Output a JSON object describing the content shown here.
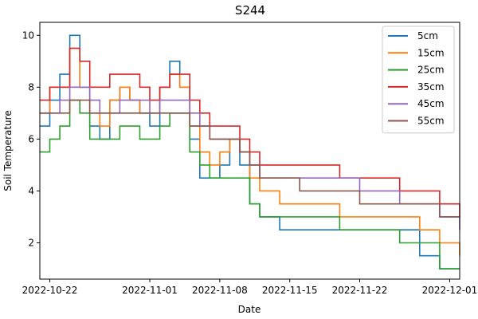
{
  "chart_data": {
    "type": "line",
    "title": "S244",
    "xlabel": "Date",
    "ylabel": "Soil Temperature",
    "x_ticks": [
      "2022-10-22",
      "2022-11-01",
      "2022-11-08",
      "2022-11-15",
      "2022-11-22",
      "2022-12-01"
    ],
    "y_ticks": [
      "2",
      "4",
      "6",
      "8",
      "10"
    ],
    "xlim": [
      "2022-10-21",
      "2022-12-02"
    ],
    "ylim": [
      0.6,
      10.5
    ],
    "grid": false,
    "legend_position": "top-right",
    "series": [
      {
        "name": "5cm",
        "color": "#1f77b4",
        "x": [
          "2022-10-21",
          "2022-10-22",
          "2022-10-23",
          "2022-10-24",
          "2022-10-25",
          "2022-10-26",
          "2022-10-27",
          "2022-10-28",
          "2022-10-29",
          "2022-10-30",
          "2022-10-31",
          "2022-11-01",
          "2022-11-02",
          "2022-11-03",
          "2022-11-04",
          "2022-11-05",
          "2022-11-06",
          "2022-11-07",
          "2022-11-08",
          "2022-11-09",
          "2022-11-10",
          "2022-11-11",
          "2022-11-12",
          "2022-11-14",
          "2022-11-16",
          "2022-11-20",
          "2022-11-22",
          "2022-11-26",
          "2022-11-28",
          "2022-11-30",
          "2022-12-02"
        ],
        "y": [
          6.5,
          7.5,
          8.5,
          10,
          8,
          6.5,
          6,
          7.5,
          8,
          7.5,
          7,
          6.5,
          8,
          9,
          8,
          6,
          4.5,
          4.5,
          5,
          6,
          5,
          3.5,
          3,
          2.5,
          2.5,
          2.5,
          2.5,
          2.5,
          1.5,
          1,
          1
        ]
      },
      {
        "name": "15cm",
        "color": "#ff7f0e",
        "x": [
          "2022-10-21",
          "2022-10-22",
          "2022-10-23",
          "2022-10-24",
          "2022-10-25",
          "2022-10-26",
          "2022-10-27",
          "2022-10-28",
          "2022-10-29",
          "2022-10-30",
          "2022-10-31",
          "2022-11-01",
          "2022-11-02",
          "2022-11-03",
          "2022-11-04",
          "2022-11-05",
          "2022-11-06",
          "2022-11-07",
          "2022-11-08",
          "2022-11-09",
          "2022-11-10",
          "2022-11-11",
          "2022-11-12",
          "2022-11-14",
          "2022-11-16",
          "2022-11-20",
          "2022-11-22",
          "2022-11-26",
          "2022-11-28",
          "2022-11-30",
          "2022-12-02"
        ],
        "y": [
          7,
          8,
          8,
          9.5,
          8,
          7,
          6.5,
          7.5,
          8,
          7.5,
          7,
          7,
          8,
          8.5,
          8,
          6.5,
          5.5,
          5,
          5.5,
          6,
          5.5,
          4.5,
          4,
          3.5,
          3.5,
          3,
          3,
          3,
          2.5,
          2,
          1.5
        ]
      },
      {
        "name": "25cm",
        "color": "#2ca02c",
        "x": [
          "2022-10-21",
          "2022-10-22",
          "2022-10-23",
          "2022-10-24",
          "2022-10-25",
          "2022-10-26",
          "2022-10-27",
          "2022-10-28",
          "2022-10-29",
          "2022-10-30",
          "2022-10-31",
          "2022-11-01",
          "2022-11-02",
          "2022-11-03",
          "2022-11-04",
          "2022-11-05",
          "2022-11-06",
          "2022-11-07",
          "2022-11-08",
          "2022-11-09",
          "2022-11-10",
          "2022-11-11",
          "2022-11-12",
          "2022-11-14",
          "2022-11-16",
          "2022-11-20",
          "2022-11-22",
          "2022-11-26",
          "2022-11-28",
          "2022-11-30",
          "2022-12-02"
        ],
        "y": [
          5.5,
          6,
          6.5,
          7.5,
          7,
          6,
          6,
          6,
          6.5,
          6.5,
          6,
          6,
          6.5,
          7,
          7,
          5.5,
          5,
          4.5,
          4.5,
          4.5,
          4.5,
          3.5,
          3,
          3,
          3,
          2.5,
          2.5,
          2,
          2,
          1,
          1
        ]
      },
      {
        "name": "35cm",
        "color": "#d62728",
        "x": [
          "2022-10-21",
          "2022-10-22",
          "2022-10-23",
          "2022-10-24",
          "2022-10-25",
          "2022-10-26",
          "2022-10-27",
          "2022-10-28",
          "2022-10-29",
          "2022-10-30",
          "2022-10-31",
          "2022-11-01",
          "2022-11-02",
          "2022-11-03",
          "2022-11-04",
          "2022-11-05",
          "2022-11-06",
          "2022-11-07",
          "2022-11-08",
          "2022-11-09",
          "2022-11-10",
          "2022-11-11",
          "2022-11-12",
          "2022-11-14",
          "2022-11-16",
          "2022-11-20",
          "2022-11-22",
          "2022-11-26",
          "2022-11-28",
          "2022-11-30",
          "2022-12-02"
        ],
        "y": [
          7.5,
          8,
          8,
          9.5,
          9,
          8,
          8,
          8.5,
          8.5,
          8.5,
          8,
          7.5,
          8,
          8.5,
          8.5,
          7.5,
          7,
          6.5,
          6.5,
          6.5,
          6,
          5.5,
          5,
          5,
          5,
          4.5,
          4.5,
          4,
          4,
          3.5,
          3
        ]
      },
      {
        "name": "45cm",
        "color": "#9467bd",
        "x": [
          "2022-10-21",
          "2022-10-22",
          "2022-10-23",
          "2022-10-24",
          "2022-10-25",
          "2022-10-26",
          "2022-10-27",
          "2022-10-28",
          "2022-10-29",
          "2022-10-30",
          "2022-10-31",
          "2022-11-01",
          "2022-11-02",
          "2022-11-03",
          "2022-11-04",
          "2022-11-05",
          "2022-11-06",
          "2022-11-07",
          "2022-11-08",
          "2022-11-09",
          "2022-11-10",
          "2022-11-11",
          "2022-11-12",
          "2022-11-14",
          "2022-11-16",
          "2022-11-20",
          "2022-11-22",
          "2022-11-26",
          "2022-11-28",
          "2022-11-30",
          "2022-12-02"
        ],
        "y": [
          7,
          7,
          7.5,
          8,
          8,
          7.5,
          7,
          7,
          7.5,
          7.5,
          7.5,
          7,
          7.5,
          7.5,
          7.5,
          7,
          6.5,
          6,
          6,
          6,
          5.5,
          5,
          4.5,
          4.5,
          4.5,
          4.5,
          4,
          3.5,
          3.5,
          3,
          2.5
        ]
      },
      {
        "name": "55cm",
        "color": "#8c564b",
        "x": [
          "2022-10-21",
          "2022-10-22",
          "2022-10-23",
          "2022-10-24",
          "2022-10-25",
          "2022-10-26",
          "2022-10-27",
          "2022-10-28",
          "2022-10-29",
          "2022-10-30",
          "2022-10-31",
          "2022-11-01",
          "2022-11-02",
          "2022-11-03",
          "2022-11-04",
          "2022-11-05",
          "2022-11-06",
          "2022-11-07",
          "2022-11-08",
          "2022-11-09",
          "2022-11-10",
          "2022-11-11",
          "2022-11-12",
          "2022-11-14",
          "2022-11-16",
          "2022-11-20",
          "2022-11-22",
          "2022-11-26",
          "2022-11-28",
          "2022-11-30",
          "2022-12-02"
        ],
        "y": [
          7,
          7,
          7,
          7.5,
          7.5,
          7,
          7,
          7,
          7,
          7,
          7,
          7,
          7,
          7,
          7,
          6.5,
          6.5,
          6,
          6,
          6,
          5.5,
          5,
          4.5,
          4.5,
          4,
          4,
          3.5,
          3.5,
          3.5,
          3,
          3
        ]
      }
    ]
  }
}
